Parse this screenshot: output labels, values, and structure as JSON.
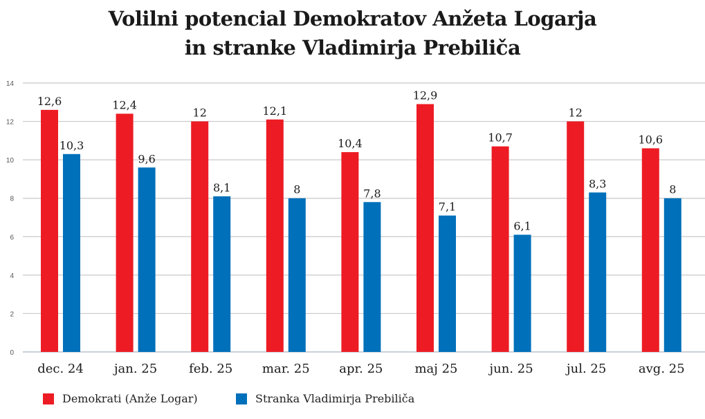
{
  "chart_data": {
    "type": "bar",
    "title_line1": "Volilni potencial Demokratov Anžeta Logarja",
    "title_line2": "in stranke Vladimirja Prebiliča",
    "xlabel": "",
    "ylabel": "",
    "ylim": [
      0,
      14
    ],
    "yticks": [
      0,
      2,
      4,
      6,
      8,
      10,
      12,
      14
    ],
    "grid": true,
    "legend_position": "bottom-left",
    "categories": [
      "dec. 24",
      "jan. 25",
      "feb. 25",
      "mar. 25",
      "apr. 25",
      "maj 25",
      "jun. 25",
      "jul. 25",
      "avg. 25"
    ],
    "series": [
      {
        "name": "Demokrati (Anže Logar)",
        "color": "#ED1C24",
        "values": [
          12.6,
          12.4,
          12,
          12.1,
          10.4,
          12.9,
          10.7,
          12,
          10.6
        ],
        "labels": [
          "12,6",
          "12,4",
          "12",
          "12,1",
          "10,4",
          "12,9",
          "10,7",
          "12",
          "10,6"
        ]
      },
      {
        "name": "Stranka Vladimirja Prebiliča",
        "color": "#0070BA",
        "values": [
          10.3,
          9.6,
          8.1,
          8,
          7.8,
          7.1,
          6.1,
          8.3,
          8
        ],
        "labels": [
          "10,3",
          "9,6",
          "8,1",
          "8",
          "7,8",
          "7,1",
          "6,1",
          "8,3",
          "8"
        ]
      }
    ]
  }
}
